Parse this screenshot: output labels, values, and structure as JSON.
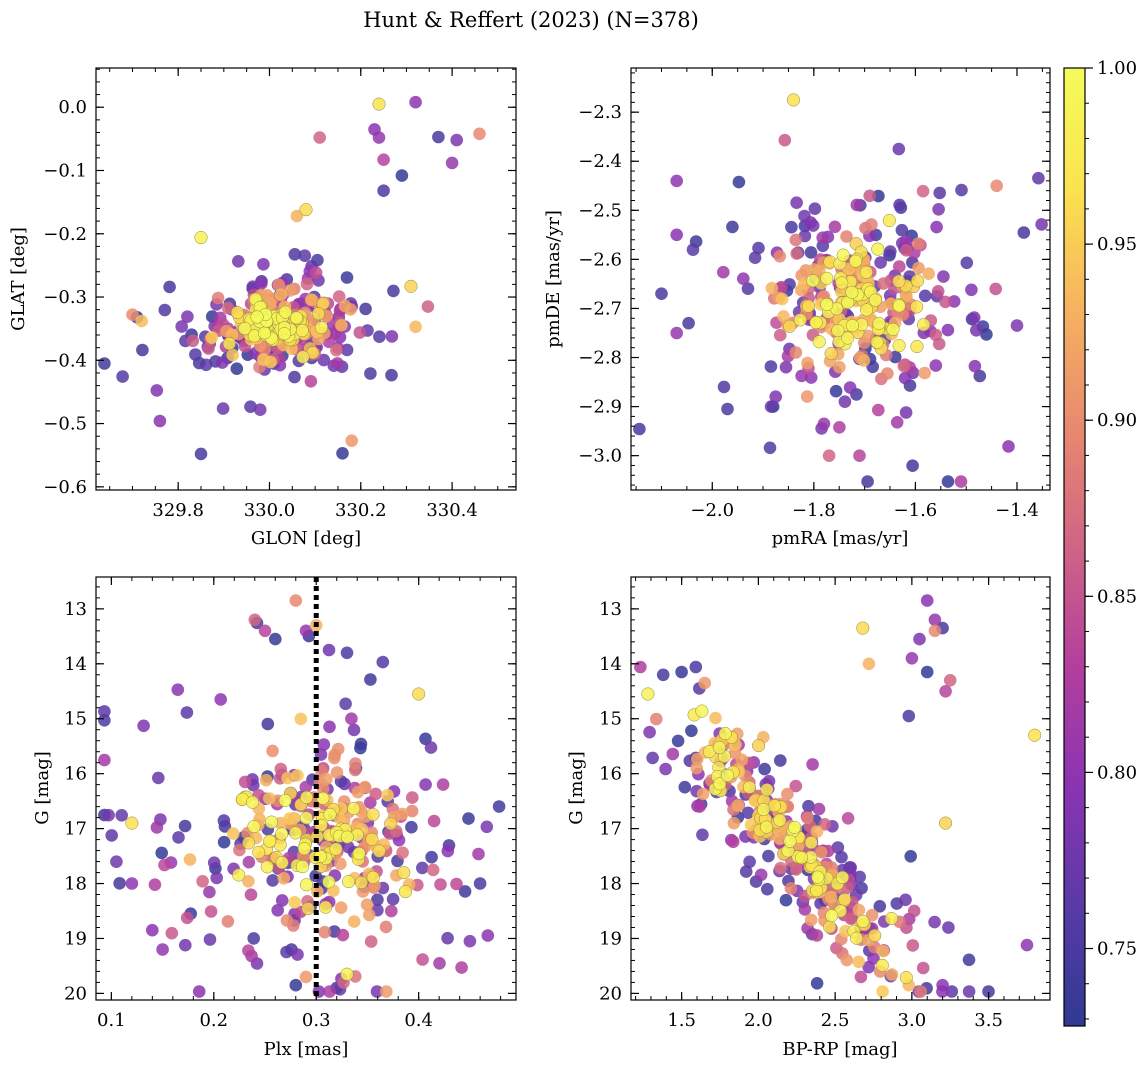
{
  "figure": {
    "title": "Hunt & Reffert (2023) (N=378)",
    "n_points": 378
  },
  "colorbar": {
    "vmin": 0.728,
    "vmax": 1.0,
    "ticks": [
      0.75,
      0.8,
      0.85,
      0.9,
      0.95,
      1.0
    ],
    "tick_labels": [
      "0.75",
      "0.80",
      "0.85",
      "0.90",
      "0.95",
      "1.00"
    ],
    "colormap": "plasma",
    "stops": [
      "#2f3a93",
      "#5a3aa6",
      "#8a34b2",
      "#b23f9e",
      "#d06484",
      "#e8896f",
      "#f6b35f",
      "#fbe34f",
      "#f5fb5a"
    ]
  },
  "chart_data": [
    {
      "id": "glon-glat",
      "type": "scatter",
      "xlabel": "GLON [deg]",
      "ylabel": "GLAT [deg]",
      "xlim": [
        329.62,
        330.54
      ],
      "ylim": [
        -0.605,
        0.062
      ],
      "y_inverted": false,
      "xticks": [
        329.8,
        330.0,
        330.2,
        330.4
      ],
      "xtick_labels": [
        "329.8",
        "330.0",
        "330.2",
        "330.4"
      ],
      "yticks": [
        0.0,
        -0.1,
        -0.2,
        -0.3,
        -0.4,
        -0.5,
        -0.6
      ],
      "ytick_labels": [
        "0.0",
        "−0.1",
        "−0.2",
        "−0.3",
        "−0.4",
        "−0.5",
        "−0.6"
      ],
      "x_minor_step": 0.05,
      "y_minor_step": 0.02,
      "center": [
        330.02,
        -0.345
      ],
      "spread": [
        0.1,
        0.045
      ],
      "outliers": [
        [
          330.24,
          0.005
        ],
        [
          330.32,
          0.008
        ],
        [
          330.23,
          -0.035
        ],
        [
          330.24,
          -0.048
        ],
        [
          330.37,
          -0.047
        ],
        [
          330.41,
          -0.052
        ],
        [
          330.46,
          -0.042
        ],
        [
          330.4,
          -0.088
        ],
        [
          330.11,
          -0.048
        ],
        [
          330.25,
          -0.083
        ],
        [
          330.29,
          -0.108
        ],
        [
          330.25,
          -0.132
        ],
        [
          330.08,
          -0.162
        ],
        [
          330.06,
          -0.172
        ],
        [
          329.85,
          -0.206
        ],
        [
          329.85,
          -0.548
        ],
        [
          330.16,
          -0.547
        ],
        [
          330.18,
          -0.527
        ],
        [
          329.76,
          -0.496
        ],
        [
          330.32,
          -0.347
        ],
        [
          330.31,
          -0.283
        ],
        [
          329.71,
          -0.332
        ],
        [
          329.7,
          -0.328
        ],
        [
          329.72,
          -0.338
        ]
      ]
    },
    {
      "id": "pm",
      "type": "scatter",
      "xlabel": "pmRA [mas/yr]",
      "ylabel": "pmDE [mas/yr]",
      "xlim": [
        -2.16,
        -1.335
      ],
      "ylim": [
        -3.07,
        -2.21
      ],
      "y_inverted": false,
      "xticks": [
        -2.0,
        -1.8,
        -1.6,
        -1.4
      ],
      "xtick_labels": [
        "−2.0",
        "−1.8",
        "−1.6",
        "−1.4"
      ],
      "yticks": [
        -2.3,
        -2.4,
        -2.5,
        -2.6,
        -2.7,
        -2.8,
        -2.9,
        -3.0
      ],
      "ytick_labels": [
        "−2.3",
        "−2.4",
        "−2.5",
        "−2.6",
        "−2.7",
        "−2.8",
        "−2.9",
        "−3.0"
      ],
      "x_minor_step": 0.05,
      "y_minor_step": 0.02,
      "center": [
        -1.72,
        -2.69
      ],
      "spread": [
        0.13,
        0.12
      ],
      "outliers": [
        [
          -1.84,
          -2.275
        ],
        [
          -2.07,
          -2.44
        ],
        [
          -2.07,
          -2.55
        ],
        [
          -2.07,
          -2.75
        ],
        [
          -2.1,
          -2.67
        ],
        [
          -1.4,
          -2.735
        ],
        [
          -1.44,
          -2.45
        ],
        [
          -1.78,
          -2.935
        ],
        [
          -1.77,
          -3.0
        ],
        [
          -1.71,
          -3.0
        ],
        [
          -1.88,
          -2.9
        ],
        [
          -1.97,
          -2.905
        ]
      ]
    },
    {
      "id": "plx-g",
      "type": "scatter",
      "xlabel": "Plx [mas]",
      "ylabel": "G [mag]",
      "xlim": [
        0.085,
        0.495
      ],
      "ylim": [
        12.42,
        20.12
      ],
      "y_inverted": true,
      "xticks": [
        0.1,
        0.2,
        0.3,
        0.4
      ],
      "xtick_labels": [
        "0.1",
        "0.2",
        "0.3",
        "0.4"
      ],
      "yticks": [
        13,
        14,
        15,
        16,
        17,
        18,
        19,
        20
      ],
      "ytick_labels": [
        "13",
        "14",
        "15",
        "16",
        "17",
        "18",
        "19",
        "20"
      ],
      "x_minor_step": 0.02,
      "y_minor_step": 0.2,
      "vline": 0.3,
      "center": [
        0.3,
        17.2
      ],
      "spread": [
        0.08,
        1.3
      ],
      "outliers": [
        [
          0.12,
          16.9
        ],
        [
          0.12,
          18.0
        ],
        [
          0.14,
          18.85
        ],
        [
          0.15,
          19.2
        ],
        [
          0.46,
          18.0
        ],
        [
          0.45,
          19.05
        ],
        [
          0.28,
          12.85
        ],
        [
          0.29,
          13.4
        ],
        [
          0.24,
          13.2
        ],
        [
          0.25,
          13.4
        ],
        [
          0.26,
          13.55
        ],
        [
          0.33,
          13.8
        ],
        [
          0.4,
          14.55
        ],
        [
          0.3,
          13.3
        ],
        [
          0.33,
          19.65
        ],
        [
          0.32,
          19.9
        ],
        [
          0.28,
          19.85
        ],
        [
          0.29,
          19.7
        ]
      ]
    },
    {
      "id": "cmd",
      "type": "scatter",
      "xlabel": "BP-RP [mag]",
      "ylabel": "G [mag]",
      "xlim": [
        1.17,
        3.9
      ],
      "ylim": [
        12.42,
        20.12
      ],
      "y_inverted": true,
      "xticks": [
        1.5,
        2.0,
        2.5,
        3.0,
        3.5
      ],
      "xtick_labels": [
        "1.5",
        "2.0",
        "2.5",
        "3.0",
        "3.5"
      ],
      "x_minor_step": 0.1,
      "y_minor_step": 0.2,
      "yticks": [
        13,
        14,
        15,
        16,
        17,
        18,
        19,
        20
      ],
      "ytick_labels": [
        "13",
        "14",
        "15",
        "16",
        "17",
        "18",
        "19",
        "20"
      ],
      "center": [
        2.25,
        17.4
      ],
      "spread": [
        0.3,
        1.2
      ],
      "outliers": [
        [
          3.8,
          15.3
        ],
        [
          3.75,
          19.12
        ],
        [
          3.1,
          12.85
        ],
        [
          3.15,
          13.2
        ],
        [
          3.2,
          13.35
        ],
        [
          3.05,
          13.55
        ],
        [
          3.15,
          13.4
        ],
        [
          3.0,
          13.9
        ],
        [
          3.25,
          14.3
        ],
        [
          3.22,
          14.5
        ],
        [
          3.1,
          14.15
        ],
        [
          2.98,
          14.95
        ],
        [
          2.68,
          13.35
        ],
        [
          2.72,
          14.0
        ],
        [
          1.28,
          14.55
        ],
        [
          1.38,
          14.2
        ],
        [
          1.5,
          14.15
        ],
        [
          1.65,
          14.35
        ],
        [
          3.2,
          19.85
        ],
        [
          2.98,
          19.85
        ],
        [
          3.22,
          16.9
        ]
      ]
    }
  ]
}
